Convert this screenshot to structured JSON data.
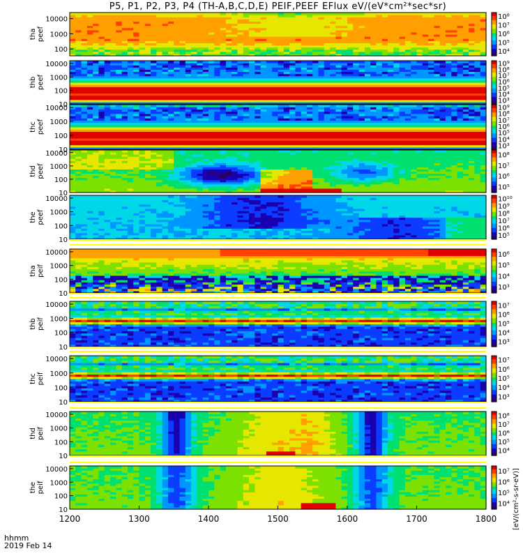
{
  "title": "P5, P1, P2, P3, P4 (TH-A,B,C,D,E) PEIF,PEEF EFlux eV/(eV*cm²*sec*sr)",
  "footer": {
    "time_label": "hhmm",
    "date_label": "2019 Feb 14"
  },
  "colorbar_unit": "[eV/(cm²-s-sr-eV)]",
  "chart_data": {
    "type": "heatmap",
    "x_ticks": [
      "1200",
      "1300",
      "1400",
      "1500",
      "1600",
      "1700",
      "1800"
    ],
    "x_range": [
      1200,
      1800
    ],
    "y_scale": "log",
    "panels": [
      {
        "label": [
          "tha",
          "peef"
        ],
        "y_ticks": [
          "100",
          "1000",
          "10000"
        ],
        "cbar_ticks": [
          "10⁴",
          "10⁵",
          "10⁶",
          "10⁷",
          "10⁸"
        ],
        "pattern": "a_peef"
      },
      {
        "label": [
          "thb",
          "peef"
        ],
        "y_ticks": [
          "10",
          "100",
          "1000",
          "10000"
        ],
        "cbar_ticks": [
          "10³",
          "10⁴",
          "10⁵",
          "10⁶",
          "10⁷",
          "10⁸",
          "10⁹"
        ],
        "pattern": "b_peef"
      },
      {
        "label": [
          "thc",
          "peef"
        ],
        "y_ticks": [
          "10",
          "100",
          "1000",
          "10000"
        ],
        "cbar_ticks": [
          "10³",
          "10⁴",
          "10⁵",
          "10⁶",
          "10⁷",
          "10⁸",
          "10⁹"
        ],
        "pattern": "c_peef"
      },
      {
        "label": [
          "thd",
          "peef"
        ],
        "y_ticks": [
          "10",
          "100",
          "1000",
          "10000"
        ],
        "cbar_ticks": [
          "10⁵",
          "10⁶",
          "10⁷",
          "10⁸"
        ],
        "pattern": "d_peef"
      },
      {
        "label": [
          "the",
          "peef"
        ],
        "y_ticks": [
          "10",
          "100",
          "1000",
          "10000"
        ],
        "cbar_ticks": [
          "10⁵",
          "10⁶",
          "10⁷",
          "10⁸",
          "10⁹",
          "10¹⁰"
        ],
        "pattern": "e_peef"
      },
      {
        "label": [
          "tha",
          "peif"
        ],
        "y_ticks": [
          "10",
          "100",
          "1000",
          "10000"
        ],
        "cbar_ticks": [
          "10³",
          "10⁴",
          "10⁵",
          "10⁶"
        ],
        "pattern": "a_peif"
      },
      {
        "label": [
          "thb",
          "peif"
        ],
        "y_ticks": [
          "10",
          "100",
          "1000",
          "10000"
        ],
        "cbar_ticks": [
          "10³",
          "10⁴",
          "10⁵",
          "10⁶",
          "10⁷"
        ],
        "pattern": "b_peif"
      },
      {
        "label": [
          "thc",
          "peif"
        ],
        "y_ticks": [
          "10",
          "100",
          "1000",
          "10000"
        ],
        "cbar_ticks": [
          "10³",
          "10⁴",
          "10⁵",
          "10⁶",
          "10⁷"
        ],
        "pattern": "c_peif"
      },
      {
        "label": [
          "thd",
          "peif"
        ],
        "y_ticks": [
          "10",
          "100",
          "1000",
          "10000"
        ],
        "cbar_ticks": [
          "10⁴",
          "10⁵",
          "10⁶",
          "10⁷",
          "10⁸"
        ],
        "pattern": "d_peif"
      },
      {
        "label": [
          "the",
          "peif"
        ],
        "y_ticks": [
          "10",
          "100",
          "1000",
          "10000"
        ],
        "cbar_ticks": [
          "10⁴",
          "10⁵",
          "10⁶",
          "10⁷"
        ],
        "pattern": "e_peif"
      }
    ],
    "colormap": [
      "#2a005c",
      "#1b00b0",
      "#0b3cff",
      "#0096ff",
      "#00d8e8",
      "#00e070",
      "#7ce000",
      "#e6e600",
      "#ffa000",
      "#ff4000",
      "#e00000"
    ]
  }
}
